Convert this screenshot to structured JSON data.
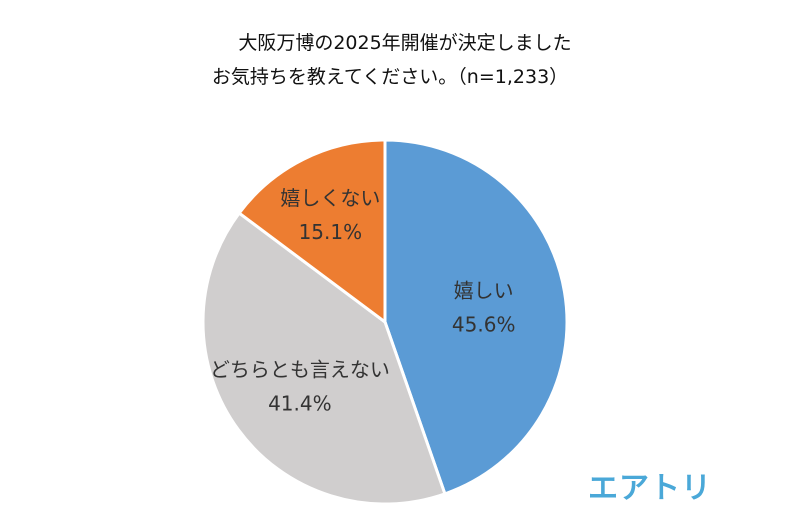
{
  "chart_data": {
    "type": "pie",
    "title": "大阪万博の2025年開催が決定しました",
    "subtitle": "お気持ちを教えてください。（n=1,233）",
    "slices": [
      {
        "label": "嬉しい",
        "value": 45.6,
        "value_text": "45.6%",
        "color": "#5b9bd5"
      },
      {
        "label": "どちらとも言えない",
        "value": 41.4,
        "value_text": "41.4%",
        "color": "#d0cece"
      },
      {
        "label": "嬉しくない",
        "value": 15.1,
        "value_text": "15.1%",
        "color": "#ed7d31"
      }
    ],
    "start_angle": "12 o'clock",
    "direction": "clockwise",
    "legend": "none"
  },
  "brand": {
    "logo_text": "エアトリ",
    "logo_color": "#4aa8d8"
  }
}
